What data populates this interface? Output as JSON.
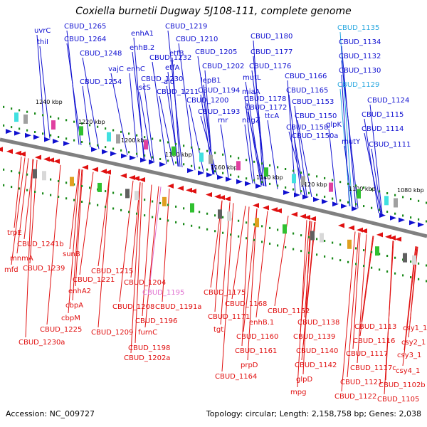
{
  "title": "Coxiella burnetii Dugway 5J108-111, complete genome",
  "footer": {
    "accession": "Accession: NC_009727",
    "summary": "Topology: circular; Length: 2,158,758 bp; Genes: 2,038"
  },
  "colors": {
    "forward": "#1010d0",
    "reverse": "#e01010",
    "highlight_forward": "#29a8e0",
    "highlight_reverse": "#e070d0",
    "backbone": "#808080",
    "ruler_dot": "#1a8a1a"
  },
  "ruler_labels": [
    "1240 kbp",
    "1220 kbp",
    "1200 kbp",
    "1180 kbp",
    "1160 kbp",
    "1140 kbp",
    "1120 kbp",
    "1100 kbp",
    "1080 kbp"
  ],
  "top_labels": [
    {
      "text": "uvrC",
      "color": "forward"
    },
    {
      "text": "thiI",
      "color": "forward"
    },
    {
      "text": "CBUD_1265",
      "color": "forward"
    },
    {
      "text": "CBUD_1264",
      "color": "forward"
    },
    {
      "text": "CBUD_1248",
      "color": "forward"
    },
    {
      "text": "CBUD_1254",
      "color": "forward"
    },
    {
      "text": "enhA1",
      "color": "forward"
    },
    {
      "text": "enhB.2",
      "color": "forward"
    },
    {
      "text": "CBUD_1232",
      "color": "forward"
    },
    {
      "text": "vajC",
      "color": "forward"
    },
    {
      "text": "enhC",
      "color": "forward"
    },
    {
      "text": "CBUD_1230",
      "color": "forward"
    },
    {
      "text": "iscS",
      "color": "forward"
    },
    {
      "text": "CBUD_1219",
      "color": "forward"
    },
    {
      "text": "CBUD_1210",
      "color": "forward"
    },
    {
      "text": "etfB",
      "color": "forward"
    },
    {
      "text": "etfA",
      "color": "forward"
    },
    {
      "text": "ald",
      "color": "forward"
    },
    {
      "text": "CBUD_1211",
      "color": "forward"
    },
    {
      "text": "CBUD_1205",
      "color": "forward"
    },
    {
      "text": "CBUD_1202",
      "color": "forward"
    },
    {
      "text": "lepB1",
      "color": "forward"
    },
    {
      "text": "CBUD_1194",
      "color": "forward"
    },
    {
      "text": "CBUD_1200",
      "color": "forward"
    },
    {
      "text": "CBUD_1193",
      "color": "forward"
    },
    {
      "text": "rnr",
      "color": "forward"
    },
    {
      "text": "CBUD_1180",
      "color": "forward"
    },
    {
      "text": "CBUD_1177",
      "color": "forward"
    },
    {
      "text": "CBUD_1176",
      "color": "forward"
    },
    {
      "text": "mutL",
      "color": "forward"
    },
    {
      "text": "CBUD_1166",
      "color": "forward"
    },
    {
      "text": "miaA",
      "color": "forward"
    },
    {
      "text": "CBUD_1165",
      "color": "forward"
    },
    {
      "text": "CBUD_1178",
      "color": "forward"
    },
    {
      "text": "CBUD_1172",
      "color": "forward"
    },
    {
      "text": "nagZ",
      "color": "forward"
    },
    {
      "text": "ttcA",
      "color": "forward"
    },
    {
      "text": "CBUD_1153",
      "color": "forward"
    },
    {
      "text": "CBUD_1150",
      "color": "forward"
    },
    {
      "text": "CBUD_1158",
      "color": "forward"
    },
    {
      "text": "glpK",
      "color": "forward"
    },
    {
      "text": "CBUD_1150a",
      "color": "forward"
    },
    {
      "text": "CBUD_1135",
      "color": "highlight_forward"
    },
    {
      "text": "CBUD_1134",
      "color": "forward"
    },
    {
      "text": "CBUD_1132",
      "color": "forward"
    },
    {
      "text": "CBUD_1130",
      "color": "forward"
    },
    {
      "text": "CBUD_1129",
      "color": "highlight_forward"
    },
    {
      "text": "CBUD_1124",
      "color": "forward"
    },
    {
      "text": "CBUD_1115",
      "color": "forward"
    },
    {
      "text": "CBUD_1114",
      "color": "forward"
    },
    {
      "text": "mutY",
      "color": "forward"
    },
    {
      "text": "CBUD_1111",
      "color": "forward"
    }
  ],
  "bottom_labels": [
    {
      "text": "trpE",
      "color": "reverse"
    },
    {
      "text": "CBUD_1241b",
      "color": "reverse"
    },
    {
      "text": "mnmA",
      "color": "reverse"
    },
    {
      "text": "mfd",
      "color": "reverse"
    },
    {
      "text": "CBUD_1239",
      "color": "reverse"
    },
    {
      "text": "sunB",
      "color": "reverse"
    },
    {
      "text": "CBUD_1215",
      "color": "reverse"
    },
    {
      "text": "CBUD_1221",
      "color": "reverse"
    },
    {
      "text": "enhA2",
      "color": "reverse"
    },
    {
      "text": "cbpA",
      "color": "reverse"
    },
    {
      "text": "cbpM",
      "color": "reverse"
    },
    {
      "text": "CBUD_1225",
      "color": "reverse"
    },
    {
      "text": "CBUD_1230a",
      "color": "reverse"
    },
    {
      "text": "CBUD_1204",
      "color": "reverse"
    },
    {
      "text": "CBUD_1195",
      "color": "highlight_reverse"
    },
    {
      "text": "CBUD_1208",
      "color": "reverse"
    },
    {
      "text": "CBUD_1191a",
      "color": "reverse"
    },
    {
      "text": "CBUD_1196",
      "color": "reverse"
    },
    {
      "text": "CBUD_1209",
      "color": "reverse"
    },
    {
      "text": "furnC",
      "color": "reverse"
    },
    {
      "text": "CBUD_1198",
      "color": "reverse"
    },
    {
      "text": "CBUD_1202a",
      "color": "reverse"
    },
    {
      "text": "CBUD_1175",
      "color": "reverse"
    },
    {
      "text": "CBUD_1168",
      "color": "reverse"
    },
    {
      "text": "CBUD_1171",
      "color": "reverse"
    },
    {
      "text": "tgt",
      "color": "reverse"
    },
    {
      "text": "enhB.1",
      "color": "reverse"
    },
    {
      "text": "CBUD_1160",
      "color": "reverse"
    },
    {
      "text": "CBUD_1161",
      "color": "reverse"
    },
    {
      "text": "prpD",
      "color": "reverse"
    },
    {
      "text": "CBUD_1164",
      "color": "reverse"
    },
    {
      "text": "CBUD_1152",
      "color": "reverse"
    },
    {
      "text": "CBUD_1138",
      "color": "reverse"
    },
    {
      "text": "CBUD_1139",
      "color": "reverse"
    },
    {
      "text": "CBUD_1140",
      "color": "reverse"
    },
    {
      "text": "CBUD_1142",
      "color": "reverse"
    },
    {
      "text": "glpD",
      "color": "reverse"
    },
    {
      "text": "mpg",
      "color": "reverse"
    },
    {
      "text": "CBUD_1113",
      "color": "reverse"
    },
    {
      "text": "CBUD_1116",
      "color": "reverse"
    },
    {
      "text": "CBUD_1117",
      "color": "reverse"
    },
    {
      "text": "CBUD_1117c",
      "color": "reverse"
    },
    {
      "text": "CBUD_1121",
      "color": "reverse"
    },
    {
      "text": "CBUD_1122",
      "color": "reverse"
    },
    {
      "text": "csy1_1",
      "color": "reverse"
    },
    {
      "text": "csy2_1",
      "color": "reverse"
    },
    {
      "text": "csy3_1",
      "color": "reverse"
    },
    {
      "text": "csy4_1",
      "color": "reverse"
    },
    {
      "text": "CBUD_1102b",
      "color": "reverse"
    },
    {
      "text": "CBUD_1105",
      "color": "reverse"
    }
  ]
}
